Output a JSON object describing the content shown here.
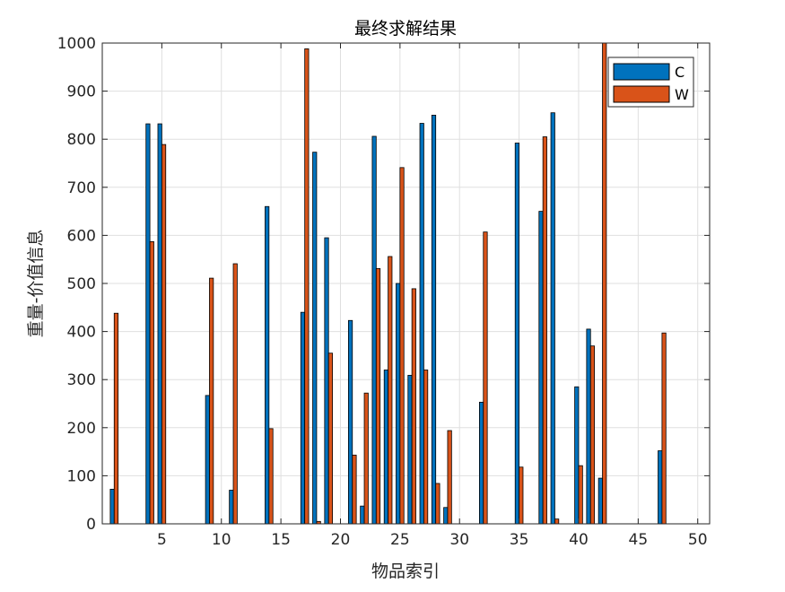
{
  "chart_data": {
    "type": "bar",
    "title": "最终求解结果",
    "xlabel": "物品索引",
    "ylabel": "重量-价值信息",
    "x": [
      1,
      2,
      3,
      4,
      5,
      6,
      7,
      8,
      9,
      10,
      11,
      12,
      13,
      14,
      15,
      16,
      17,
      18,
      19,
      20,
      21,
      22,
      23,
      24,
      25,
      26,
      27,
      28,
      29,
      30,
      31,
      32,
      33,
      34,
      35,
      36,
      37,
      38,
      39,
      40,
      41,
      42,
      43,
      44,
      45,
      46,
      47,
      48,
      49,
      50
    ],
    "xlim": [
      0,
      51
    ],
    "ylim": [
      0,
      1000
    ],
    "xticks": [
      5,
      10,
      15,
      20,
      25,
      30,
      35,
      40,
      45,
      50
    ],
    "yticks": [
      0,
      100,
      200,
      300,
      400,
      500,
      600,
      700,
      800,
      900,
      1000
    ],
    "grid": true,
    "legend_position": "top-right",
    "series": [
      {
        "name": "C",
        "color": "#0072BD",
        "values": [
          72,
          0,
          0,
          832,
          832,
          0,
          0,
          0,
          267,
          0,
          70,
          0,
          0,
          660,
          0,
          0,
          440,
          773,
          595,
          0,
          423,
          37,
          806,
          320,
          500,
          309,
          833,
          850,
          34,
          0,
          0,
          253,
          0,
          0,
          792,
          0,
          650,
          855,
          0,
          285,
          405,
          95,
          0,
          0,
          0,
          0,
          152,
          0,
          0,
          0
        ]
      },
      {
        "name": "W",
        "color": "#D95319",
        "values": [
          438,
          0,
          0,
          587,
          789,
          0,
          0,
          0,
          511,
          0,
          541,
          0,
          0,
          198,
          0,
          0,
          988,
          5,
          355,
          0,
          143,
          272,
          531,
          556,
          741,
          489,
          320,
          84,
          194,
          0,
          0,
          607,
          0,
          0,
          118,
          0,
          805,
          10,
          0,
          121,
          370,
          1000,
          0,
          0,
          0,
          0,
          397,
          0,
          0,
          0
        ]
      }
    ]
  }
}
